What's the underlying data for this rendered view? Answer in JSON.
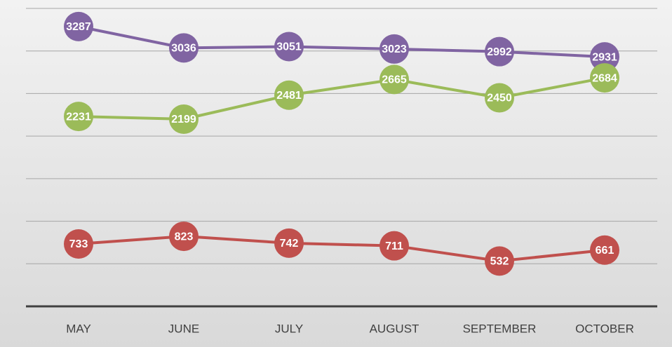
{
  "chart_data": {
    "type": "line",
    "categories": [
      "MAY",
      "JUNE",
      "JULY",
      "AUGUST",
      "SEPTEMBER",
      "OCTOBER"
    ],
    "series": [
      {
        "color": "#8064a2",
        "values": [
          3287,
          3036,
          3051,
          3023,
          2992,
          2931
        ]
      },
      {
        "color": "#9bbb59",
        "values": [
          2231,
          2199,
          2481,
          2665,
          2450,
          2684
        ]
      },
      {
        "color": "#c0504d",
        "values": [
          733,
          823,
          742,
          711,
          532,
          661
        ]
      }
    ],
    "ylim": [
      0,
      3500
    ],
    "yticks": [
      0,
      500,
      1000,
      1500,
      2000,
      2500,
      3000,
      3500
    ],
    "grid": true
  }
}
